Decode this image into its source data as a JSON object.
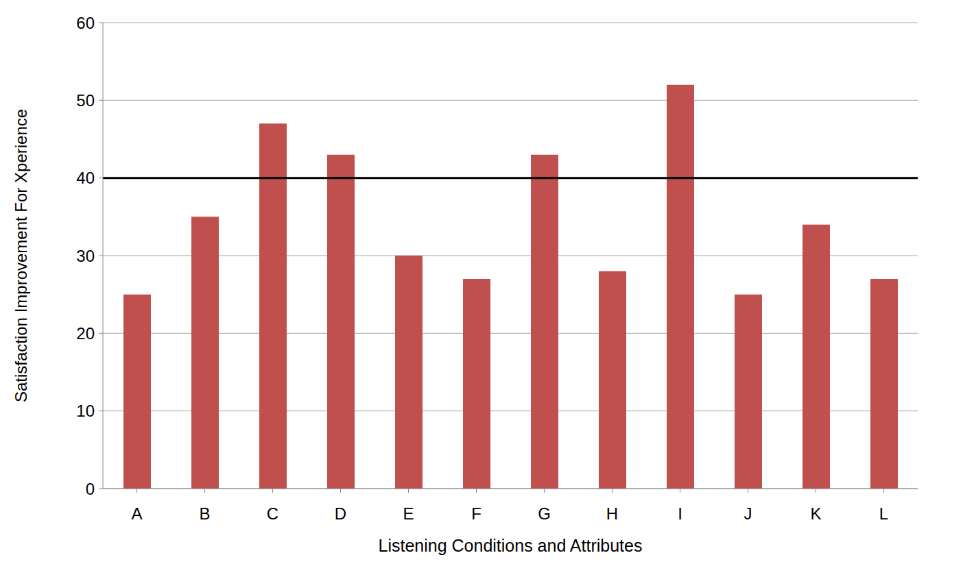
{
  "chart_data": {
    "type": "bar",
    "x_label": "Listening Conditions and Attributes",
    "y_label": "Satisfaction Improvement For  Xperience",
    "categories": [
      "A",
      "B",
      "C",
      "D",
      "E",
      "F",
      "G",
      "H",
      "I",
      "J",
      "K",
      "L"
    ],
    "values": [
      25,
      35,
      47,
      43,
      30,
      27,
      43,
      28,
      52,
      25,
      34,
      27
    ],
    "color": "#c0504d",
    "reference_line": 40,
    "ylim": [
      0,
      60
    ],
    "yticks": [
      0,
      10,
      20,
      30,
      40,
      50,
      60
    ],
    "grid": true
  }
}
